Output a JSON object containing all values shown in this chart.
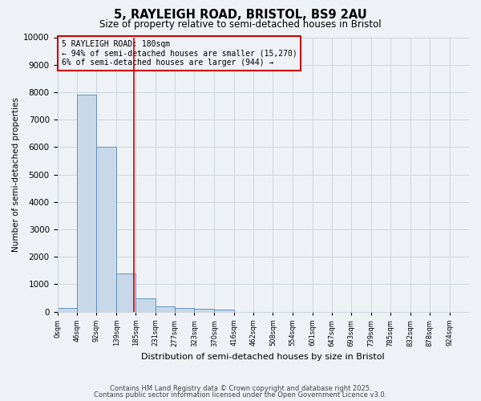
{
  "title": "5, RAYLEIGH ROAD, BRISTOL, BS9 2AU",
  "subtitle": "Size of property relative to semi-detached houses in Bristol",
  "xlabel": "Distribution of semi-detached houses by size in Bristol",
  "ylabel": "Number of semi-detached properties",
  "bin_labels": [
    "0sqm",
    "46sqm",
    "92sqm",
    "139sqm",
    "185sqm",
    "231sqm",
    "277sqm",
    "323sqm",
    "370sqm",
    "416sqm",
    "462sqm",
    "508sqm",
    "554sqm",
    "601sqm",
    "647sqm",
    "693sqm",
    "739sqm",
    "785sqm",
    "832sqm",
    "878sqm",
    "924sqm"
  ],
  "bin_edges": [
    0,
    46,
    92,
    139,
    185,
    231,
    277,
    323,
    370,
    416,
    462,
    508,
    554,
    601,
    647,
    693,
    739,
    785,
    832,
    878,
    924,
    970
  ],
  "bar_heights": [
    150,
    7900,
    6000,
    1400,
    500,
    200,
    150,
    100,
    70,
    0,
    0,
    0,
    0,
    0,
    0,
    0,
    0,
    0,
    0,
    0,
    0
  ],
  "bar_color": "#c8d8e8",
  "bar_edge_color": "#5588bb",
  "vline_x": 180,
  "vline_color": "#cc0000",
  "ylim": [
    0,
    10000
  ],
  "yticks": [
    0,
    1000,
    2000,
    3000,
    4000,
    5000,
    6000,
    7000,
    8000,
    9000,
    10000
  ],
  "annotation_title": "5 RAYLEIGH ROAD: 180sqm",
  "annotation_line1": "← 94% of semi-detached houses are smaller (15,270)",
  "annotation_line2": "6% of semi-detached houses are larger (944) →",
  "annotation_box_color": "#cc0000",
  "footer1": "Contains HM Land Registry data © Crown copyright and database right 2025.",
  "footer2": "Contains public sector information licensed under the Open Government Licence v3.0.",
  "bg_color": "#eef2f6",
  "grid_color": "#c8d0d8"
}
